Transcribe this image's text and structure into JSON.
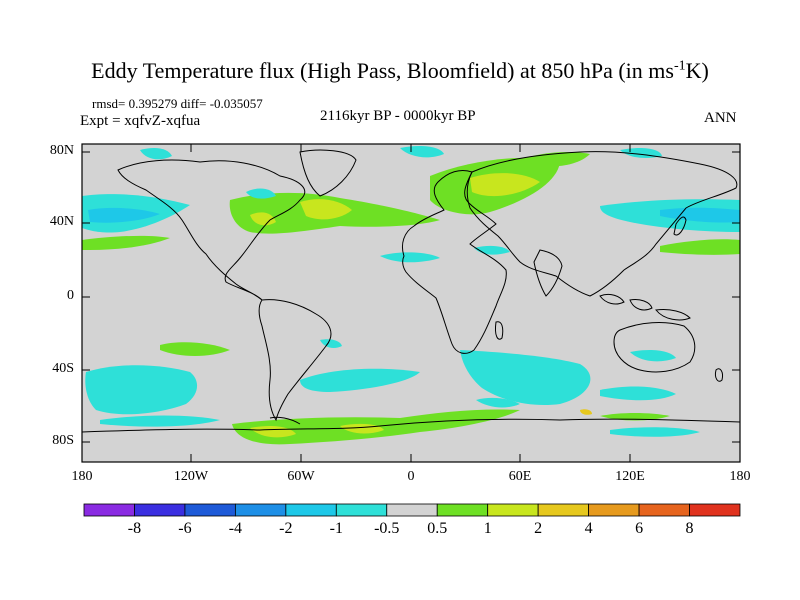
{
  "title": "Eddy Temperature flux (High Pass, Bloomfield) at 850 hPa (in ms",
  "title_sup": "-1",
  "title_end": "K)",
  "stats": "rmsd= 0.395279 diff= -0.035057",
  "expt": "Expt = xqfvZ-xqfua",
  "period": "2116kyr BP - 0000kyr BP",
  "season": "ANN",
  "lat_labels": [
    "80N",
    "40N",
    "0",
    "40S",
    "80S"
  ],
  "lon_labels": [
    "180",
    "120W",
    "60W",
    "0",
    "60E",
    "120E",
    "180"
  ],
  "colorbar": {
    "labels": [
      "-8",
      "-6",
      "-4",
      "-2",
      "-1",
      "-0.5",
      "0.5",
      "1",
      "2",
      "4",
      "6",
      "8"
    ],
    "colors": [
      "#8a2be2",
      "#3a2ee0",
      "#1e5ad8",
      "#1e8fe6",
      "#1ec8e8",
      "#2ee0d8",
      "#d3d3d3",
      "#6ee024",
      "#c8e61e",
      "#e6c81e",
      "#e69a1e",
      "#e6641e",
      "#e0321e"
    ]
  },
  "map": {
    "ocean_color": "#d3d3d3",
    "coast_color": "#000000",
    "anomaly_colors": {
      "neg_small": "#2ee0d8",
      "neg_med": "#1ec8e8",
      "pos_small": "#6ee024",
      "pos_med": "#c8e61e",
      "pos_large": "#e6c81e"
    }
  }
}
